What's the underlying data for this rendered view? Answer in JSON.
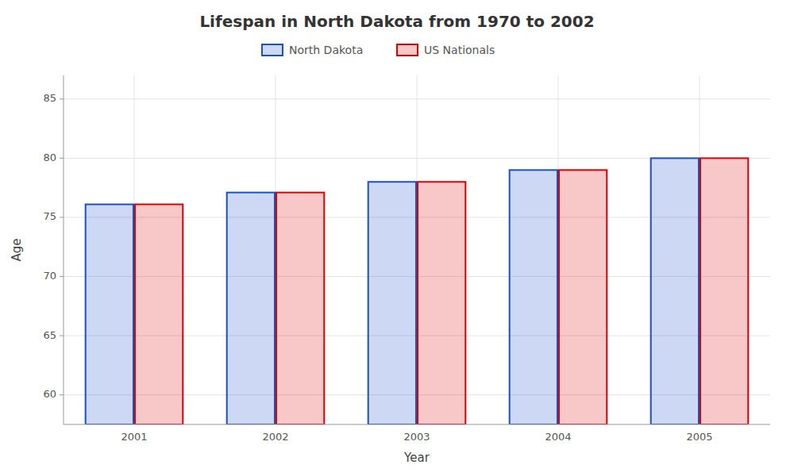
{
  "chart_data": {
    "type": "bar",
    "title": "Lifespan in North Dakota from 1970 to 2002",
    "xlabel": "Year",
    "ylabel": "Age",
    "categories": [
      "2001",
      "2002",
      "2003",
      "2004",
      "2005"
    ],
    "series": [
      {
        "name": "North Dakota",
        "color": "#1a4fcc",
        "values": [
          76.1,
          77.1,
          78.0,
          79.0,
          80.0
        ]
      },
      {
        "name": "US Nationals",
        "color": "#dd0000",
        "values": [
          76.1,
          77.1,
          78.0,
          79.0,
          80.0
        ]
      }
    ],
    "ylim": [
      57.5,
      87
    ],
    "yticks": [
      60,
      65,
      70,
      75,
      80,
      85
    ],
    "grid": true,
    "legend": "top"
  }
}
